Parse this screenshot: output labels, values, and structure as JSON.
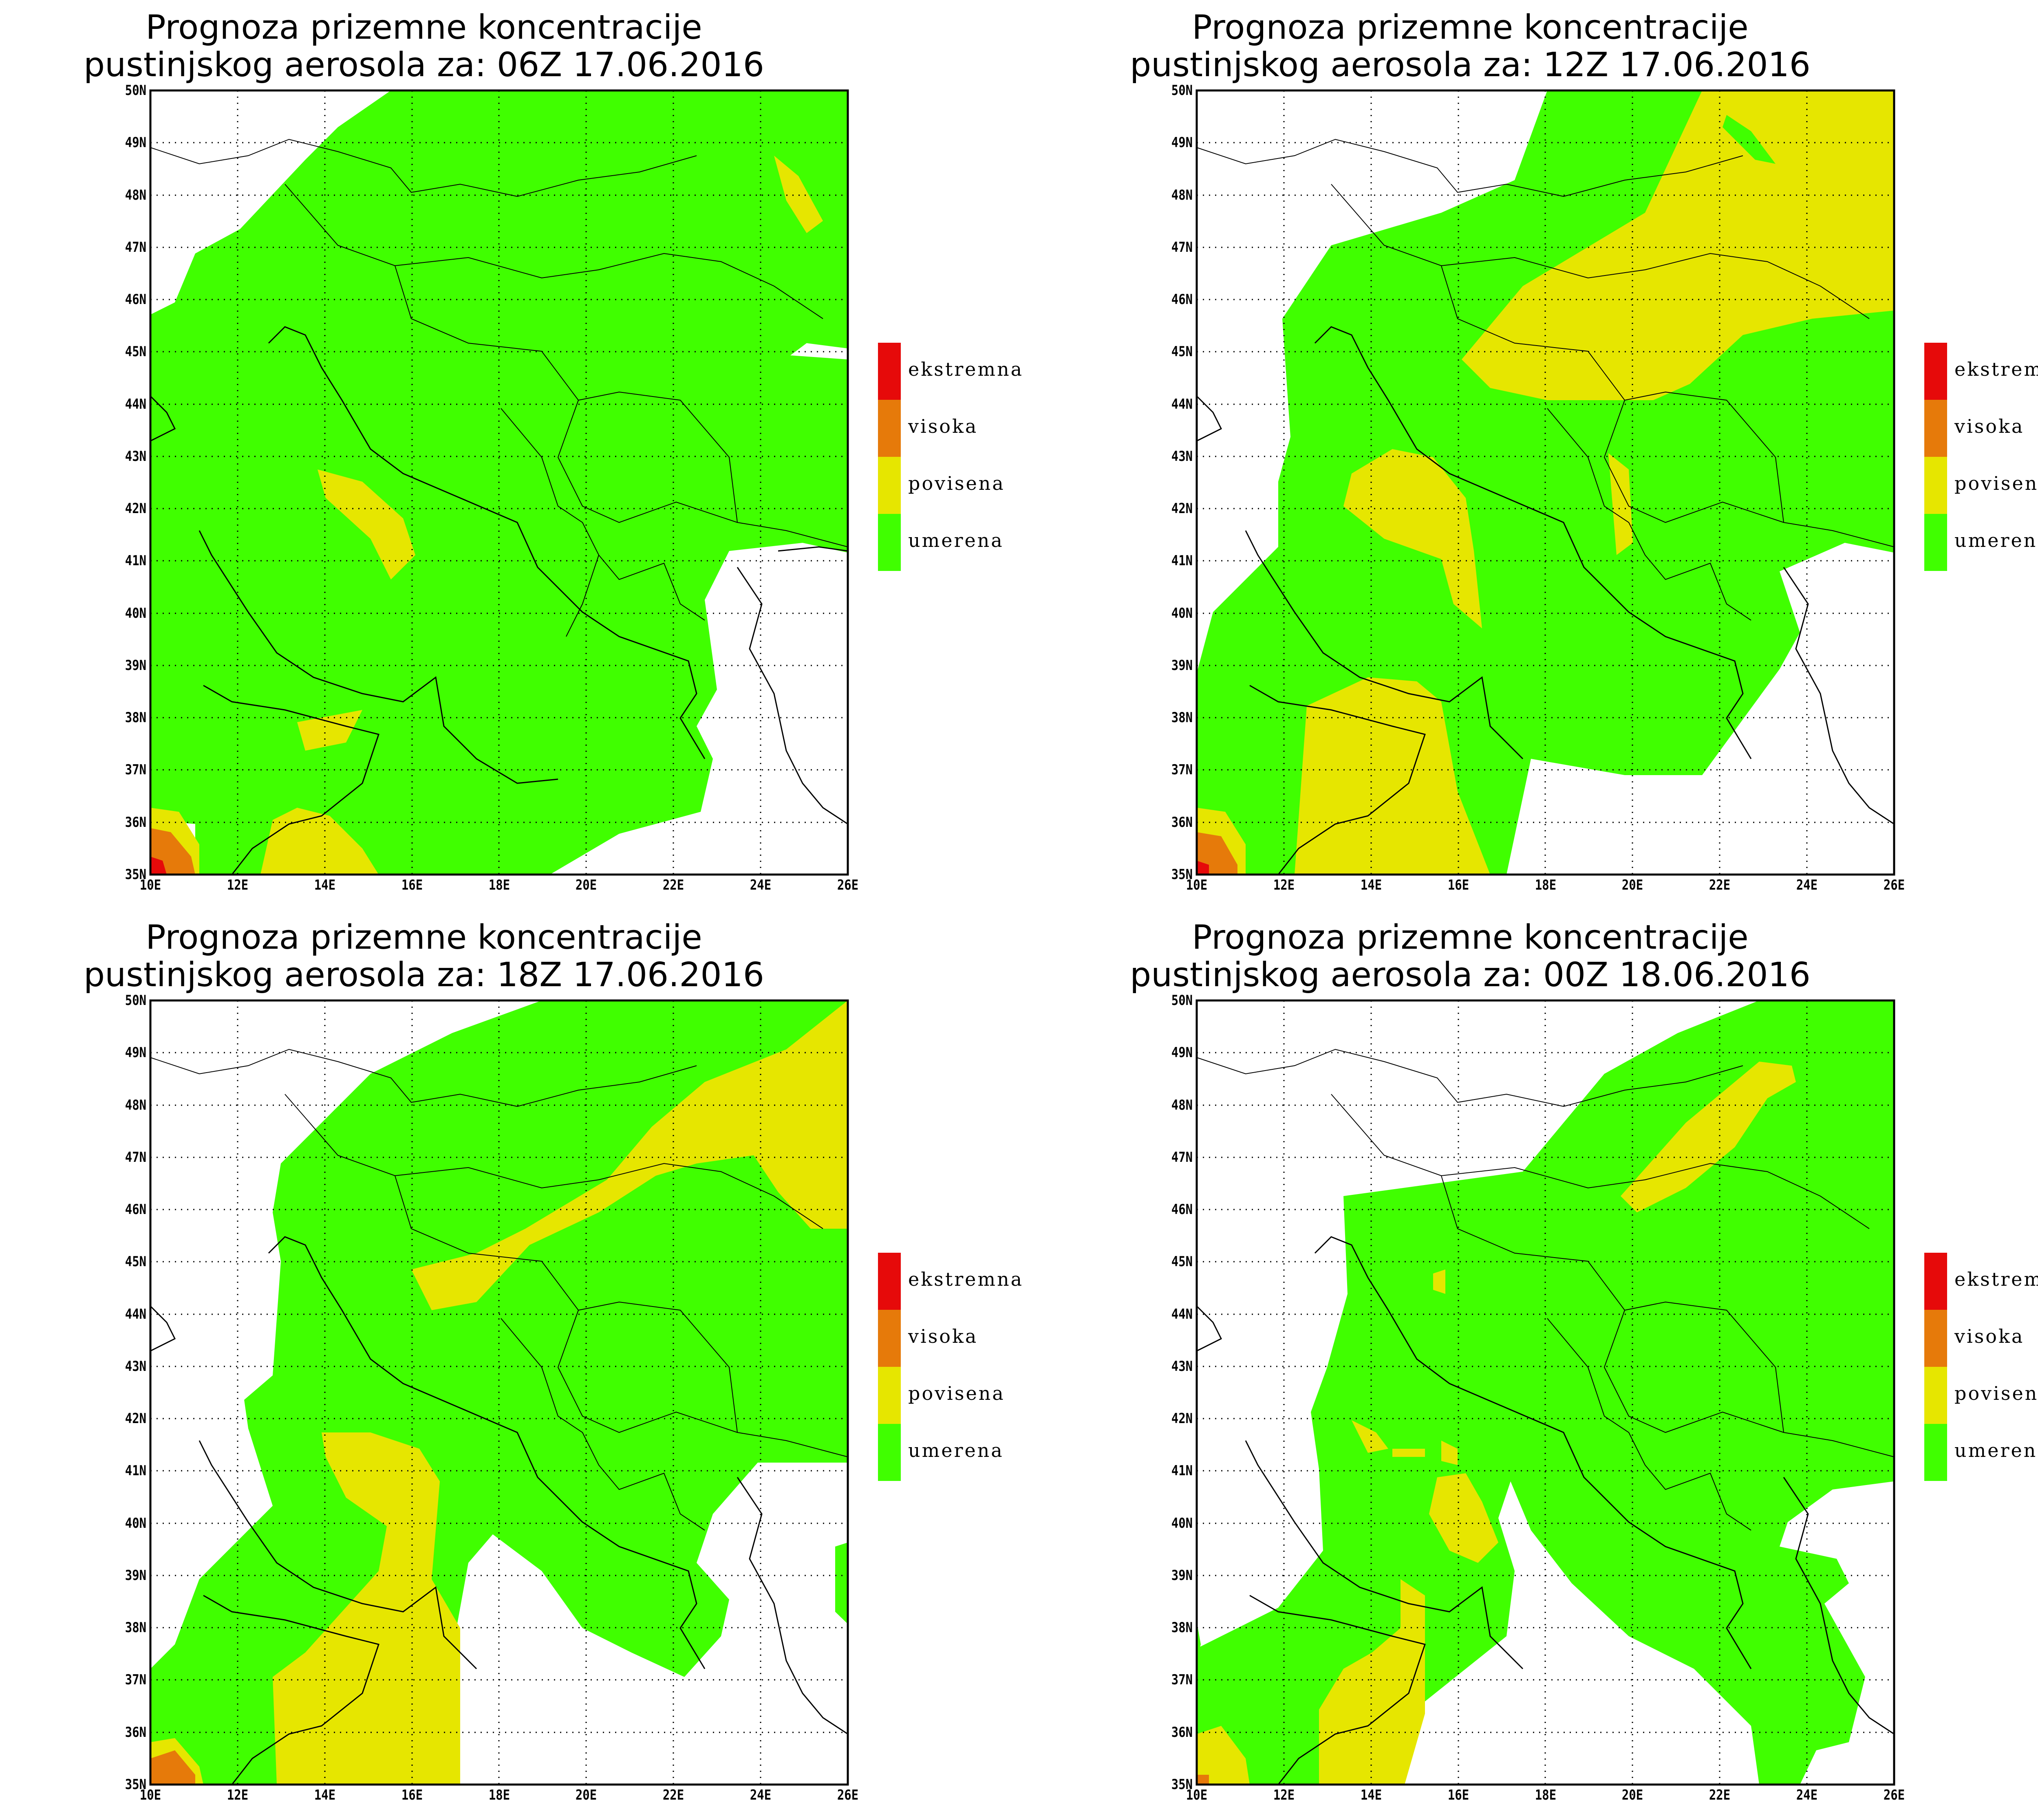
{
  "colors": {
    "umerena": "#40ff00",
    "povisena": "#e6e600",
    "visoka": "#e67a0a",
    "ekstremna": "#e60a0a",
    "background": "#ffffff"
  },
  "legend": [
    {
      "label": "ekstremna",
      "color": "#e60a0a"
    },
    {
      "label": "visoka",
      "color": "#e67a0a"
    },
    {
      "label": "povisena",
      "color": "#e6e600"
    },
    {
      "label": "umerena",
      "color": "#40ff00"
    }
  ],
  "axes": {
    "lon_labels": [
      "10E",
      "12E",
      "14E",
      "16E",
      "18E",
      "20E",
      "22E",
      "24E",
      "26E"
    ],
    "lat_labels": [
      "35N",
      "36N",
      "37N",
      "38N",
      "39N",
      "40N",
      "41N",
      "42N",
      "43N",
      "44N",
      "45N",
      "46N",
      "47N",
      "48N",
      "49N",
      "50N"
    ],
    "lon_range": [
      10,
      26
    ],
    "lat_range": [
      35,
      50
    ]
  },
  "panels": [
    {
      "title_line1": "Prognoza prizemne koncentracije",
      "title_line2": "pustinjskog aerosola za: 06Z 17.06.2016"
    },
    {
      "title_line1": "Prognoza prizemne koncentracije",
      "title_line2": "pustinjskog aerosola za: 12Z 17.06.2016"
    },
    {
      "title_line1": "Prognoza prizemne koncentracije",
      "title_line2": "pustinjskog aerosola za: 18Z 17.06.2016"
    },
    {
      "title_line1": "Prognoza prizemne koncentracije",
      "title_line2": "pustinjskog aerosola za: 00Z 18.06.2016"
    }
  ]
}
